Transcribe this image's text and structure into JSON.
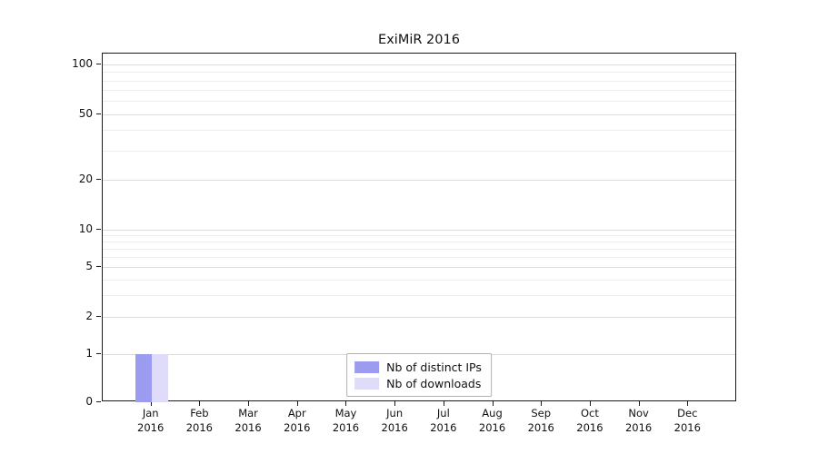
{
  "chart_data": {
    "type": "bar",
    "title": "ExiMiR 2016",
    "categories": [
      {
        "month": "Jan",
        "year": "2016"
      },
      {
        "month": "Feb",
        "year": "2016"
      },
      {
        "month": "Mar",
        "year": "2016"
      },
      {
        "month": "Apr",
        "year": "2016"
      },
      {
        "month": "May",
        "year": "2016"
      },
      {
        "month": "Jun",
        "year": "2016"
      },
      {
        "month": "Jul",
        "year": "2016"
      },
      {
        "month": "Aug",
        "year": "2016"
      },
      {
        "month": "Sep",
        "year": "2016"
      },
      {
        "month": "Oct",
        "year": "2016"
      },
      {
        "month": "Nov",
        "year": "2016"
      },
      {
        "month": "Dec",
        "year": "2016"
      }
    ],
    "series": [
      {
        "name": "Nb of distinct IPs",
        "color": "#9b9bf0",
        "values": [
          1,
          0,
          0,
          0,
          0,
          0,
          0,
          0,
          0,
          0,
          0,
          0
        ]
      },
      {
        "name": "Nb of downloads",
        "color": "#dedcf8",
        "values": [
          1,
          0,
          0,
          0,
          0,
          0,
          0,
          0,
          0,
          0,
          0,
          0
        ]
      }
    ],
    "y_axis": {
      "scale": "log",
      "major_ticks": [
        0,
        1,
        2,
        5,
        10,
        20,
        50,
        100
      ],
      "minor_gridline_values": [
        3,
        4,
        6,
        7,
        8,
        9,
        30,
        40,
        60,
        70,
        80,
        90
      ],
      "ylim": [
        0,
        130
      ]
    },
    "x_axis": {
      "label": ""
    },
    "grid": "horizontal",
    "legend_position": "lower-center"
  }
}
